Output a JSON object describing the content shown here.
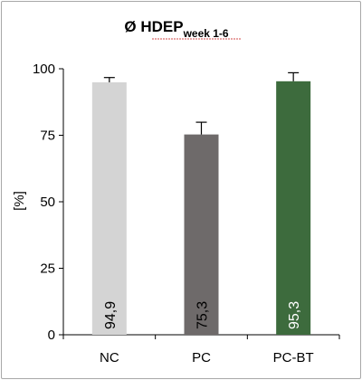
{
  "chart_data": {
    "type": "bar",
    "title": "Ø HDEP",
    "title_subscript": "week 1-6",
    "xlabel": "",
    "ylabel": "[%]",
    "ylim": [
      0,
      100
    ],
    "yticks": [
      "0",
      "25",
      "50",
      "75",
      "100"
    ],
    "grid": false,
    "legend": "none",
    "categories": [
      "NC",
      "PC",
      "PC-BT"
    ],
    "values": [
      94.9,
      75.3,
      95.3
    ],
    "value_labels": [
      "94,9",
      "75,3",
      "95,3"
    ],
    "error_bars": [
      1.8,
      4.6,
      3.2
    ],
    "bar_colors": [
      "#d4d4d4",
      "#6e6a6a",
      "#3d6b3d"
    ],
    "label_colors": [
      "#000000",
      "#000000",
      "#ffffff"
    ]
  }
}
